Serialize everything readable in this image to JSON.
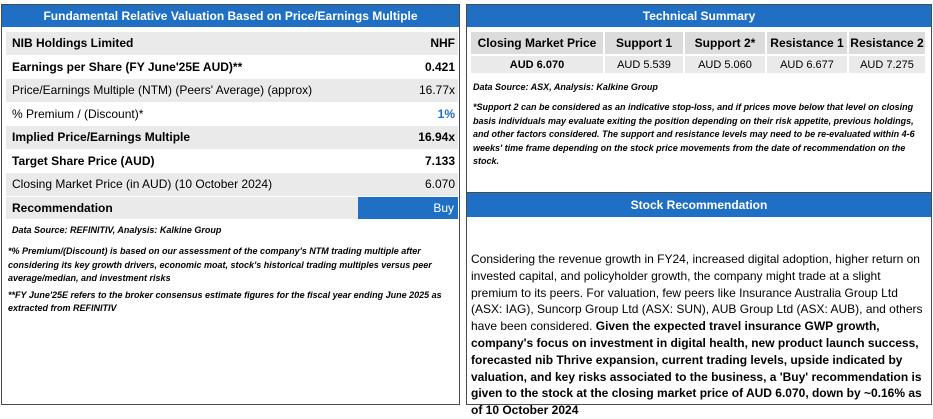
{
  "valuation": {
    "title": "Fundamental Relative Valuation Based on Price/Earnings Multiple",
    "rows": [
      {
        "label": "NIB Holdings Limited",
        "value": "NHF"
      },
      {
        "label": "Earnings per Share (FY June'25E AUD)**",
        "value": "0.421"
      },
      {
        "label": "Price/Earnings Multiple (NTM)  (Peers' Average) (approx)",
        "value": "16.77x"
      },
      {
        "label": "% Premium / (Discount)*",
        "value": "1%"
      },
      {
        "label": "Implied Price/Earnings Multiple",
        "value": "16.94x"
      },
      {
        "label": "Target Share Price (AUD)",
        "value": "7.133"
      },
      {
        "label": "Closing Market Price (in AUD) (10 October 2024)",
        "value": "6.070"
      },
      {
        "label": "Recommendation",
        "value": "Buy"
      }
    ],
    "source": "Data Source: REFINITIV, Analysis: Kalkine Group",
    "note1": "*% Premium/(Discount) is based on our assessment of the company's NTM trading multiple after considering its key growth drivers, economic moat, stock's historical trading multiples versus peer average/median, and investment risks",
    "note2": " **FY June'25E refers to the broker consensus estimate figures for the fiscal year ending June 2025 as extracted from REFINITIV"
  },
  "technical": {
    "title": "Technical Summary",
    "headers": [
      "Closing Market Price",
      "Support 1",
      "Support 2*",
      "Resistance 1",
      "Resistance 2"
    ],
    "values": [
      "AUD 6.070",
      "AUD 5.539",
      "AUD 5.060",
      "AUD 6.677",
      "AUD 7.275"
    ],
    "source": "Data Source: ASX, Analysis: Kalkine Group",
    "note": "*Support 2 can be considered as an indicative stop-loss, and if prices move below that level on closing basis individuals may evaluate exiting the position depending on their risk appetite, previous holdings, and other factors considered. The support and resistance levels may need to be re-evaluated within 4-6 weeks' time frame depending on the stock price movements from the date of recommendation on the stock."
  },
  "recommendation": {
    "title": "Stock Recommendation",
    "para1": "Considering the revenue growth in FY24, increased digital adoption, higher return on invested capital, and policyholder growth, the company might trade at a slight premium to its peers. For valuation, few peers like Insurance Australia Group Ltd (ASX: IAG), Suncorp Group Ltd (ASX: SUN), AUB Group Ltd (ASX: AUB), and others have been considered. ",
    "para_bold": "Given the expected travel insurance GWP growth, company's focus on investment in digital health, new product launch success, forecasted nib Thrive expansion, current trading levels, upside indicated by valuation, and key risks associated to the business, a 'Buy' recommendation is given to the stock at the closing market price of AUD 6.070, down by ~0.16%  as of 10 October 2024"
  },
  "colors": {
    "accent": "#1f6fc5",
    "shade": "#eaeaea"
  }
}
